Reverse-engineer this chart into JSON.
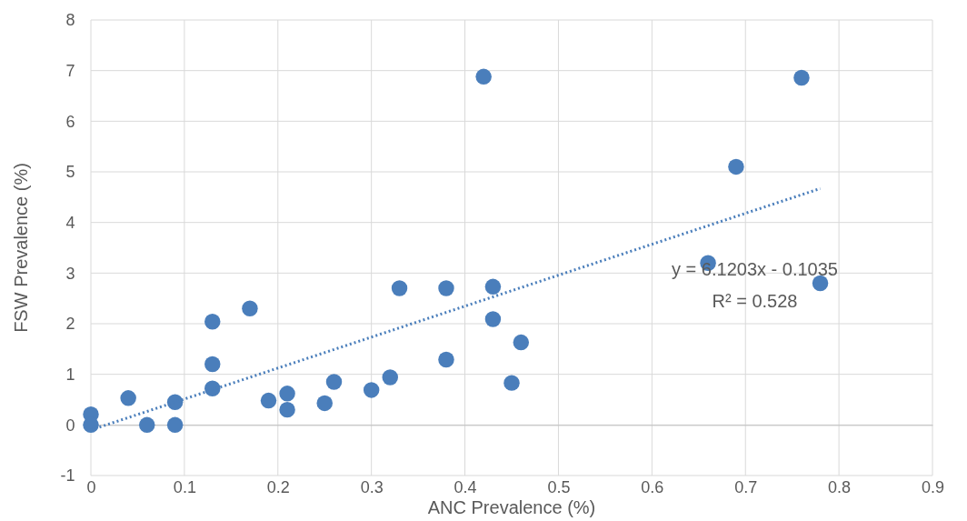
{
  "chart_data": {
    "type": "scatter",
    "xlabel": "ANC Prevalence (%)",
    "ylabel": "FSW Prevalence (%)",
    "xlim": [
      0,
      0.9
    ],
    "xticks": [
      0,
      0.1,
      0.2,
      0.3,
      0.4,
      0.5,
      0.6,
      0.7,
      0.8,
      0.9
    ],
    "ylim": [
      -1,
      8
    ],
    "yticks": [
      -1,
      0,
      1,
      2,
      3,
      4,
      5,
      6,
      7,
      8
    ],
    "grid": true,
    "annotations": [
      "y = 6.1203x - 0.1035",
      "R² = 0.528"
    ],
    "series": [
      {
        "marker": "circle",
        "color": "#4a7ebb",
        "x": [
          0,
          0,
          0.04,
          0.06,
          0.09,
          0.09,
          0.13,
          0.13,
          0.13,
          0.17,
          0.19,
          0.21,
          0.21,
          0.25,
          0.26,
          0.3,
          0.32,
          0.33,
          0.38,
          0.38,
          0.42,
          0.43,
          0.43,
          0.45,
          0.46,
          0.66,
          0.69,
          0.76,
          0.78
        ],
        "values": [
          0.21,
          0,
          0.53,
          0,
          0.45,
          0,
          2.04,
          1.2,
          0.72,
          2.3,
          0.48,
          0.62,
          0.3,
          0.43,
          0.85,
          0.69,
          0.94,
          2.7,
          2.7,
          1.29,
          6.88,
          2.73,
          2.09,
          0.83,
          1.63,
          3.2,
          5.1,
          6.86,
          2.8
        ]
      },
      {
        "type": "line",
        "color": "#4a7ebb",
        "line_style": "dotted",
        "x": [
          0,
          0.78
        ],
        "values": [
          -0.1,
          4.67
        ]
      }
    ]
  }
}
